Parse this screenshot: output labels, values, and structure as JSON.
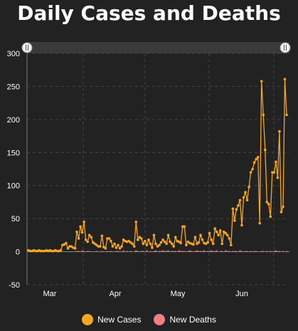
{
  "chart_data": {
    "type": "line",
    "title": "Daily Cases and Deaths",
    "ylim": [
      -50,
      300
    ],
    "y_ticks": [
      "300",
      "250",
      "200",
      "150",
      "100",
      "50",
      "0",
      "-50"
    ],
    "x_tick_labels": [
      "Mar",
      "Apr",
      "May",
      "Jun"
    ],
    "grid": true,
    "legend_position": "bottom",
    "series": [
      {
        "name": "New Cases",
        "style": "line-with-markers",
        "color": "#f5a623",
        "values": [
          2,
          1,
          1,
          2,
          1,
          1,
          2,
          1,
          1,
          1,
          2,
          1,
          2,
          1,
          1,
          2,
          1,
          1,
          2,
          10,
          11,
          13,
          5,
          8,
          8,
          6,
          5,
          30,
          20,
          38,
          29,
          45,
          18,
          15,
          25,
          22,
          14,
          12,
          10,
          8,
          8,
          24,
          7,
          5,
          20,
          20,
          16,
          8,
          12,
          6,
          10,
          5,
          8,
          18,
          16,
          15,
          16,
          14,
          12,
          8,
          45,
          18,
          22,
          20,
          12,
          16,
          10,
          18,
          12,
          6,
          25,
          12,
          8,
          10,
          14,
          18,
          15,
          12,
          25,
          15,
          12,
          8,
          22,
          16,
          15,
          13,
          38,
          38,
          10,
          15,
          13,
          12,
          11,
          22,
          12,
          14,
          25,
          18,
          13,
          12,
          14,
          28,
          18,
          12,
          35,
          30,
          25,
          32,
          12,
          30,
          28,
          25,
          20,
          10,
          65,
          47,
          64,
          70,
          78,
          40,
          82,
          90,
          78,
          98,
          120,
          125,
          135,
          140,
          143,
          43,
          258,
          207,
          154,
          75,
          72,
          53,
          120,
          120,
          136,
          112,
          182,
          60,
          68,
          261,
          207
        ],
        "x_positions": [
          0,
          1,
          2,
          3,
          4,
          5,
          6,
          7,
          8,
          9,
          10,
          11,
          12,
          13,
          14,
          15,
          16,
          17,
          18,
          19,
          20,
          21,
          22,
          23,
          24,
          25,
          26,
          27,
          28,
          29,
          30,
          31,
          32,
          33,
          34,
          35,
          36,
          37,
          38,
          39,
          40,
          41,
          42,
          43,
          44,
          45,
          46,
          47,
          48,
          49,
          50,
          51,
          52,
          53,
          54,
          55,
          56,
          57,
          58,
          59,
          60,
          61,
          62,
          63,
          64,
          65,
          66,
          67,
          68,
          69,
          70,
          71,
          72,
          73,
          74,
          75,
          76,
          77,
          78,
          79,
          80,
          81,
          82,
          83,
          84,
          85,
          86,
          87,
          88,
          89,
          90,
          91,
          92,
          93,
          94,
          95,
          96,
          97,
          98,
          99,
          100,
          101,
          102,
          103,
          104,
          105,
          106,
          107,
          108,
          109,
          110,
          111,
          112,
          113,
          114,
          115,
          116,
          117,
          118,
          119,
          120,
          121,
          122,
          123,
          124,
          125,
          126,
          127,
          128,
          129,
          130,
          131,
          132,
          133,
          134,
          135,
          136,
          137,
          138,
          139,
          140,
          141,
          142,
          143,
          144
        ]
      },
      {
        "name": "New Deaths",
        "style": "bar",
        "color": "#f08080",
        "values": [
          0,
          0,
          0,
          0,
          0,
          0,
          0,
          0,
          0,
          0,
          0,
          0,
          0,
          0,
          0,
          0,
          0,
          0,
          0,
          0,
          0,
          0,
          0,
          0,
          0,
          0,
          0,
          1,
          1,
          0,
          2,
          1,
          0,
          1,
          1,
          0,
          0,
          0,
          1,
          0,
          0,
          1,
          0,
          0,
          1,
          0,
          1,
          0,
          0,
          1,
          1,
          0,
          0,
          2,
          0,
          1,
          0,
          1,
          0,
          0,
          2,
          1,
          0,
          1,
          1,
          0,
          2,
          0,
          1,
          0,
          1,
          2,
          0,
          1,
          1,
          2,
          1,
          1,
          2,
          0,
          1,
          1,
          1,
          0,
          2,
          1,
          1,
          1,
          0,
          1,
          2,
          1,
          0,
          1,
          2,
          1,
          1,
          1,
          2,
          0,
          1,
          1,
          2,
          1,
          1,
          2,
          0,
          1,
          1,
          0,
          2,
          1,
          1,
          0,
          1,
          1,
          1,
          0,
          2,
          1,
          0,
          1,
          1,
          0,
          1,
          0,
          1,
          1,
          0,
          0,
          1,
          1,
          0,
          1,
          0,
          1,
          0,
          1,
          2,
          1,
          1,
          0,
          1,
          0,
          1
        ]
      }
    ]
  },
  "legend": {
    "cases_label": "New Cases",
    "deaths_label": "New Deaths",
    "cases_color": "#f5a623",
    "deaths_color": "#f08080"
  },
  "scrollbar": {
    "left_handle_icon": "grip-icon",
    "right_handle_icon": "grip-icon"
  }
}
